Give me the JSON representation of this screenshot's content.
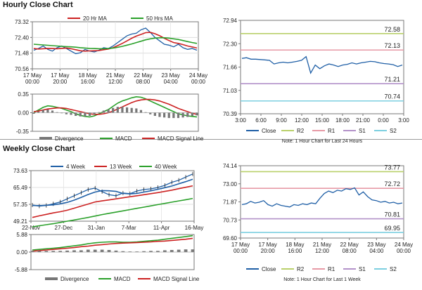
{
  "sections": {
    "hourly_title": "Hourly Close Chart",
    "weekly_title": "Weekly Close Chart"
  },
  "colors": {
    "close": "#1f5fa6",
    "ma_short": "#cc2222",
    "ma_long": "#2aa02a",
    "r2": "#b9d06a",
    "r1": "#e79aa6",
    "s1": "#b392c9",
    "s2": "#7ccfe0",
    "divergence": "#777777"
  },
  "chart_data": [
    {
      "id": "hourly-price",
      "type": "line",
      "legend": [
        "20 Hr MA",
        "50 Hrs MA"
      ],
      "legend_position": "top",
      "ylim": [
        70.56,
        73.32
      ],
      "yticks": [
        "73.32",
        "72.40",
        "71.48",
        "70.56"
      ],
      "xticks": [
        "17 May\n00:00",
        "17 May\n20:00",
        "18 May\n16:00",
        "21 May\n12:00",
        "22 May\n08:00",
        "23 May\n04:00",
        "24 May\n00:00"
      ],
      "grid": true,
      "series": [
        {
          "name": "Close",
          "values": [
            71.65,
            71.75,
            71.9,
            71.7,
            71.6,
            71.8,
            71.9,
            71.75,
            71.6,
            71.45,
            71.5,
            71.7,
            71.6,
            71.55,
            71.65,
            71.8,
            71.75,
            71.9,
            72.1,
            72.3,
            72.5,
            72.6,
            72.65,
            72.85,
            72.95,
            72.7,
            72.4,
            72.2,
            72.0,
            71.95,
            71.85,
            72.0,
            71.8,
            71.7,
            71.75,
            71.65
          ]
        },
        {
          "name": "20 Hr MA",
          "values": [
            71.75,
            71.72,
            71.74,
            71.76,
            71.75,
            71.74,
            71.76,
            71.78,
            71.74,
            71.68,
            71.62,
            71.6,
            71.61,
            71.62,
            71.63,
            71.68,
            71.72,
            71.8,
            71.92,
            72.05,
            72.2,
            72.35,
            72.48,
            72.58,
            72.68,
            72.7,
            72.62,
            72.5,
            72.35,
            72.22,
            72.1,
            72.05,
            71.98,
            71.9,
            71.84,
            71.78
          ]
        },
        {
          "name": "50 Hrs MA",
          "values": [
            72.0,
            71.98,
            71.96,
            71.94,
            71.92,
            71.9,
            71.88,
            71.86,
            71.85,
            71.83,
            71.8,
            71.78,
            71.76,
            71.75,
            71.74,
            71.74,
            71.75,
            71.78,
            71.82,
            71.88,
            71.95,
            72.02,
            72.1,
            72.18,
            72.26,
            72.32,
            72.36,
            72.38,
            72.38,
            72.36,
            72.32,
            72.28,
            72.22,
            72.16,
            72.1,
            72.05
          ]
        }
      ]
    },
    {
      "id": "hourly-macd",
      "type": "line",
      "legend": [
        "Divergence",
        "MACD",
        "MACD Signal Line"
      ],
      "legend_position": "bottom",
      "ylim": [
        -0.35,
        0.35
      ],
      "yticks": [
        "0.35",
        "0.00",
        "-0.35"
      ],
      "grid": true,
      "series": [
        {
          "name": "MACD",
          "values": [
            0.0,
            0.05,
            0.1,
            0.13,
            0.12,
            0.1,
            0.08,
            0.05,
            0.02,
            -0.02,
            -0.05,
            -0.07,
            -0.08,
            -0.06,
            -0.02,
            0.02,
            0.06,
            0.12,
            0.18,
            0.22,
            0.25,
            0.28,
            0.3,
            0.29,
            0.26,
            0.22,
            0.18,
            0.14,
            0.1,
            0.06,
            0.02,
            -0.02,
            -0.04,
            -0.06,
            -0.07,
            -0.08
          ]
        },
        {
          "name": "MACD Signal Line",
          "values": [
            0.02,
            0.03,
            0.05,
            0.07,
            0.08,
            0.09,
            0.09,
            0.08,
            0.06,
            0.04,
            0.02,
            0.0,
            -0.02,
            -0.03,
            -0.03,
            -0.02,
            0.0,
            0.03,
            0.07,
            0.11,
            0.15,
            0.19,
            0.22,
            0.24,
            0.25,
            0.25,
            0.24,
            0.22,
            0.19,
            0.16,
            0.12,
            0.08,
            0.05,
            0.02,
            -0.01,
            -0.03
          ]
        },
        {
          "name": "Divergence",
          "values": [
            -0.02,
            0.02,
            0.05,
            0.06,
            0.04,
            0.01,
            -0.01,
            -0.03,
            -0.04,
            -0.06,
            -0.07,
            -0.07,
            -0.06,
            -0.03,
            0.01,
            0.04,
            0.06,
            0.09,
            0.11,
            0.11,
            0.1,
            0.09,
            0.08,
            0.05,
            0.01,
            -0.03,
            -0.06,
            -0.08,
            -0.09,
            -0.1,
            -0.1,
            -0.1,
            -0.09,
            -0.08,
            -0.06,
            -0.05
          ]
        }
      ]
    },
    {
      "id": "hourly-levels",
      "type": "line",
      "ylim": [
        70.39,
        72.94
      ],
      "yticks": [
        "72.94",
        "72.30",
        "71.66",
        "71.03",
        "70.39"
      ],
      "xticks": [
        "3:00",
        "6:00",
        "9:00",
        "12:00",
        "15:00",
        "18:00",
        "21:00",
        "0:00",
        "3:00"
      ],
      "levels": {
        "R2": 72.58,
        "R1": 72.13,
        "S1": 71.21,
        "S2": 70.74
      },
      "level_labels": [
        "72.58",
        "72.13",
        "71.21",
        "70.74"
      ],
      "legend": [
        "Close",
        "R2",
        "R1",
        "S1",
        "S2"
      ],
      "legend_position": "bottom",
      "note": "Note: 1 Hour Chart for Last 24 Hours",
      "series": [
        {
          "name": "Close",
          "values": [
            71.9,
            71.92,
            71.88,
            71.88,
            71.87,
            71.86,
            71.85,
            71.75,
            71.78,
            71.8,
            71.78,
            71.8,
            71.82,
            71.85,
            71.95,
            71.5,
            71.72,
            71.62,
            71.7,
            71.75,
            71.72,
            71.68,
            71.72,
            71.74,
            71.78,
            71.75,
            71.78,
            71.8,
            71.82,
            71.81,
            71.78,
            71.76,
            71.75,
            71.73,
            71.68,
            71.72
          ]
        }
      ]
    },
    {
      "id": "weekly-price",
      "type": "line",
      "legend": [
        "4 Week",
        "13 Week",
        "40 Week"
      ],
      "legend_position": "top",
      "ylim": [
        49.21,
        73.63
      ],
      "yticks": [
        "73.63",
        "65.49",
        "57.35",
        "49.21"
      ],
      "xticks": [
        "22-Nov",
        "27-Dec",
        "31-Jan",
        "7-Mar",
        "11-Apr",
        "16-May"
      ],
      "grid": true,
      "series": [
        {
          "name": "Close",
          "values": [
            57.0,
            56.5,
            56.8,
            57.6,
            58.5,
            60.0,
            61.5,
            63.0,
            64.5,
            65.2,
            63.5,
            62.0,
            61.5,
            62.8,
            62.5,
            63.8,
            64.5,
            64.8,
            65.5,
            66.5,
            68.0,
            69.0,
            70.5,
            72.0
          ]
        },
        {
          "name": "4 Week",
          "values": [
            56.8,
            56.7,
            56.9,
            57.1,
            57.6,
            58.3,
            59.4,
            60.7,
            62.1,
            63.3,
            64.0,
            63.9,
            63.6,
            62.6,
            62.4,
            62.6,
            63.3,
            63.9,
            64.6,
            65.4,
            66.2,
            67.3,
            68.3,
            69.5
          ]
        },
        {
          "name": "13 Week",
          "values": [
            51.0,
            51.8,
            52.5,
            53.2,
            53.8,
            54.5,
            55.5,
            56.5,
            57.5,
            58.5,
            59.0,
            59.5,
            60.0,
            60.5,
            61.0,
            61.5,
            62.0,
            62.5,
            63.0,
            63.6,
            64.2,
            64.9,
            65.6,
            66.3
          ]
        },
        {
          "name": "40 Week",
          "values": [
            46.5,
            47.0,
            47.5,
            48.0,
            48.6,
            49.2,
            49.8,
            50.4,
            51.0,
            51.7,
            52.4,
            53.0,
            53.6,
            54.2,
            54.8,
            55.4,
            56.0,
            56.6,
            57.2,
            57.8,
            58.4,
            59.0,
            59.6,
            60.2
          ]
        }
      ]
    },
    {
      "id": "weekly-macd",
      "type": "line",
      "legend": [
        "Divergence",
        "MACD",
        "MACD Signal Line"
      ],
      "legend_position": "bottom",
      "ylim": [
        -5.88,
        5.88
      ],
      "yticks": [
        "5.88",
        "0.00",
        "-5.88"
      ],
      "grid": true,
      "series": [
        {
          "name": "MACD",
          "values": [
            0.7,
            0.9,
            1.1,
            1.3,
            1.5,
            1.8,
            2.1,
            2.4,
            2.8,
            3.1,
            3.3,
            3.4,
            3.4,
            3.3,
            3.3,
            3.4,
            3.6,
            3.8,
            4.0,
            4.3,
            4.6,
            4.9,
            5.2,
            5.5
          ]
        },
        {
          "name": "MACD Signal Line",
          "values": [
            0.3,
            0.5,
            0.7,
            0.9,
            1.1,
            1.3,
            1.5,
            1.8,
            2.0,
            2.3,
            2.5,
            2.7,
            2.9,
            3.0,
            3.1,
            3.2,
            3.3,
            3.4,
            3.6,
            3.7,
            3.9,
            4.1,
            4.3,
            4.6
          ]
        },
        {
          "name": "Divergence",
          "values": [
            0.4,
            0.4,
            0.4,
            0.4,
            0.4,
            0.5,
            0.6,
            0.6,
            0.8,
            0.8,
            0.8,
            0.7,
            0.5,
            0.3,
            0.2,
            0.2,
            0.3,
            0.4,
            0.4,
            0.6,
            0.7,
            0.8,
            0.9,
            0.9
          ]
        }
      ]
    },
    {
      "id": "weekly-levels",
      "type": "line",
      "ylim": [
        69.6,
        74.14
      ],
      "yticks": [
        "74.14",
        "73.00",
        "71.87",
        "70.73",
        "69.60"
      ],
      "xticks": [
        "17 May\n00:00",
        "17 May\n20:00",
        "18 May\n16:00",
        "21 May\n12:00",
        "22 May\n08:00",
        "23 May\n04:00",
        "24 May\n00:00"
      ],
      "levels": {
        "R2": 73.77,
        "R1": 72.72,
        "S1": 70.81,
        "S2": 69.95
      },
      "level_labels": [
        "73.77",
        "72.72",
        "70.81",
        "69.95"
      ],
      "legend": [
        "Close",
        "R2",
        "R1",
        "S1",
        "S2"
      ],
      "legend_position": "bottom",
      "note": "Note: 1 Hour Chart for Last 1 Week",
      "series": [
        {
          "name": "Close",
          "values": [
            71.7,
            71.75,
            71.9,
            71.8,
            71.85,
            71.95,
            71.7,
            71.6,
            71.75,
            71.65,
            71.6,
            71.55,
            71.7,
            71.65,
            71.75,
            71.7,
            71.8,
            71.75,
            72.1,
            72.4,
            72.55,
            72.45,
            72.6,
            72.55,
            72.7,
            72.65,
            72.75,
            72.3,
            72.5,
            72.2,
            72.0,
            71.95,
            71.85,
            71.9,
            71.8,
            71.85,
            71.75,
            71.8
          ]
        }
      ]
    }
  ]
}
